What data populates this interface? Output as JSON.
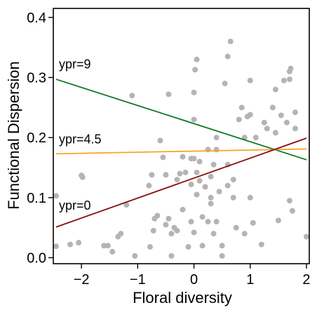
{
  "chart_data": {
    "type": "scatter",
    "xlabel": "Floral diversity",
    "ylabel": "Functional Dispersion",
    "xlim": [
      -2.5,
      2.05
    ],
    "ylim": [
      -0.01,
      0.415
    ],
    "xticks": [
      -2,
      -1,
      0,
      1,
      2
    ],
    "yticks": [
      0.0,
      0.1,
      0.2,
      0.3,
      0.4
    ],
    "xtick_labels": [
      "−2",
      "−1",
      "0",
      "1",
      "2"
    ],
    "ytick_labels": [
      "0.0",
      "0.1",
      "0.2",
      "0.3",
      "0.4"
    ],
    "grid": false,
    "point_color": "#b4b4b4",
    "points": [
      {
        "x": -2.45,
        "y": 0.103
      },
      {
        "x": -2.45,
        "y": 0.019
      },
      {
        "x": -2.2,
        "y": 0.022
      },
      {
        "x": -2.05,
        "y": 0.025
      },
      {
        "x": -2.0,
        "y": 0.137
      },
      {
        "x": -1.98,
        "y": 0.134
      },
      {
        "x": -1.6,
        "y": 0.02
      },
      {
        "x": -1.53,
        "y": 0.02
      },
      {
        "x": -1.45,
        "y": 0.01
      },
      {
        "x": -1.35,
        "y": 0.035
      },
      {
        "x": -1.3,
        "y": 0.04
      },
      {
        "x": -1.2,
        "y": 0.088
      },
      {
        "x": -1.1,
        "y": 0.27
      },
      {
        "x": -1.05,
        "y": 0.003
      },
      {
        "x": -0.8,
        "y": 0.12
      },
      {
        "x": -0.78,
        "y": 0.018
      },
      {
        "x": -0.75,
        "y": 0.138
      },
      {
        "x": -0.72,
        "y": 0.045
      },
      {
        "x": -0.7,
        "y": 0.065
      },
      {
        "x": -0.65,
        "y": 0.07
      },
      {
        "x": -0.6,
        "y": 0.195
      },
      {
        "x": -0.55,
        "y": 0.167
      },
      {
        "x": -0.5,
        "y": 0.138
      },
      {
        "x": -0.5,
        "y": 0.055
      },
      {
        "x": -0.45,
        "y": 0.272
      },
      {
        "x": -0.45,
        "y": 0.065
      },
      {
        "x": -0.4,
        "y": 0.04
      },
      {
        "x": -0.4,
        "y": 0.003
      },
      {
        "x": -0.35,
        "y": 0.05
      },
      {
        "x": -0.3,
        "y": 0.045
      },
      {
        "x": -0.3,
        "y": 0.13
      },
      {
        "x": -0.25,
        "y": 0.14
      },
      {
        "x": -0.2,
        "y": 0.168
      },
      {
        "x": -0.2,
        "y": 0.08
      },
      {
        "x": -0.15,
        "y": 0.142
      },
      {
        "x": -0.1,
        "y": 0.018
      },
      {
        "x": -0.05,
        "y": 0.122
      },
      {
        "x": -0.05,
        "y": 0.165
      },
      {
        "x": 0.0,
        "y": 0.042
      },
      {
        "x": -0.05,
        "y": 0.06
      },
      {
        "x": 0.0,
        "y": 0.165
      },
      {
        "x": 0.0,
        "y": 0.275
      },
      {
        "x": 0.0,
        "y": 0.23
      },
      {
        "x": 0.02,
        "y": 0.313
      },
      {
        "x": 0.05,
        "y": 0.33
      },
      {
        "x": 0.05,
        "y": 0.142
      },
      {
        "x": 0.05,
        "y": 0.105
      },
      {
        "x": 0.1,
        "y": 0.16
      },
      {
        "x": 0.1,
        "y": 0.128
      },
      {
        "x": 0.15,
        "y": 0.02
      },
      {
        "x": 0.15,
        "y": 0.068
      },
      {
        "x": 0.2,
        "y": 0.118
      },
      {
        "x": 0.25,
        "y": 0.06
      },
      {
        "x": 0.25,
        "y": 0.18
      },
      {
        "x": 0.3,
        "y": 0.135
      },
      {
        "x": 0.3,
        "y": 0.1
      },
      {
        "x": 0.3,
        "y": 0.09
      },
      {
        "x": 0.35,
        "y": 0.155
      },
      {
        "x": 0.35,
        "y": 0.04
      },
      {
        "x": 0.4,
        "y": 0.18
      },
      {
        "x": 0.4,
        "y": 0.2
      },
      {
        "x": 0.4,
        "y": 0.06
      },
      {
        "x": 0.45,
        "y": 0.11
      },
      {
        "x": 0.5,
        "y": 0.02
      },
      {
        "x": 0.5,
        "y": 0.003
      },
      {
        "x": 0.55,
        "y": 0.29
      },
      {
        "x": 0.6,
        "y": 0.335
      },
      {
        "x": 0.6,
        "y": 0.155
      },
      {
        "x": 0.6,
        "y": 0.12
      },
      {
        "x": 0.65,
        "y": 0.36
      },
      {
        "x": 0.7,
        "y": 0.1
      },
      {
        "x": 0.7,
        "y": 0.13
      },
      {
        "x": 0.75,
        "y": 0.05
      },
      {
        "x": 0.8,
        "y": 0.23
      },
      {
        "x": 0.85,
        "y": 0.25
      },
      {
        "x": 0.9,
        "y": 0.2
      },
      {
        "x": 0.9,
        "y": 0.04
      },
      {
        "x": 0.95,
        "y": 0.235
      },
      {
        "x": 1.0,
        "y": 0.295
      },
      {
        "x": 1.0,
        "y": 0.238
      },
      {
        "x": 1.0,
        "y": 0.1
      },
      {
        "x": 1.05,
        "y": 0.058
      },
      {
        "x": 1.1,
        "y": 0.2
      },
      {
        "x": 1.2,
        "y": 0.022
      },
      {
        "x": 1.25,
        "y": 0.225
      },
      {
        "x": 1.3,
        "y": 0.215
      },
      {
        "x": 1.4,
        "y": 0.25
      },
      {
        "x": 1.45,
        "y": 0.28
      },
      {
        "x": 1.45,
        "y": 0.208
      },
      {
        "x": 1.5,
        "y": 0.062
      },
      {
        "x": 1.55,
        "y": 0.237
      },
      {
        "x": 1.6,
        "y": 0.295
      },
      {
        "x": 1.65,
        "y": 0.225
      },
      {
        "x": 1.7,
        "y": 0.297
      },
      {
        "x": 1.7,
        "y": 0.31
      },
      {
        "x": 1.72,
        "y": 0.315
      },
      {
        "x": 1.7,
        "y": 0.095
      },
      {
        "x": 1.75,
        "y": 0.078
      },
      {
        "x": 1.8,
        "y": 0.242
      },
      {
        "x": 1.8,
        "y": 0.215
      },
      {
        "x": 2.0,
        "y": 0.035
      }
    ],
    "lines": [
      {
        "label": "ypr=9",
        "color": "#117a24",
        "x": [
          -2.45,
          2.0
        ],
        "y": [
          0.297,
          0.163
        ],
        "label_x": -2.4,
        "label_y": 0.315
      },
      {
        "label": "ypr=4.5",
        "color": "#f5a623",
        "x": [
          -2.45,
          2.0
        ],
        "y": [
          0.173,
          0.181
        ],
        "label_x": -2.4,
        "label_y": 0.19
      },
      {
        "label": "ypr=0",
        "color": "#8b0d0d",
        "x": [
          -2.45,
          2.0
        ],
        "y": [
          0.051,
          0.199
        ],
        "label_x": -2.4,
        "label_y": 0.08
      }
    ]
  }
}
